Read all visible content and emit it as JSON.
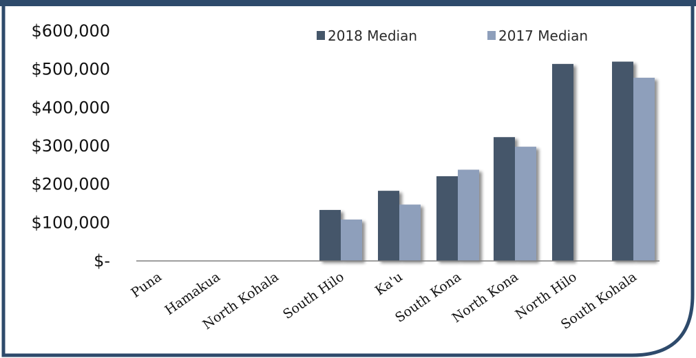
{
  "chart_data": {
    "type": "bar",
    "title": "",
    "xlabel": "",
    "ylabel": "",
    "categories": [
      "Puna",
      "Hamakua",
      "North Kohala",
      "South Hilo",
      "Ka'u",
      "South Kona",
      "North Kona",
      "North Hilo",
      "South Kohala"
    ],
    "series": [
      {
        "name": "2018 Median",
        "color": "#45576a",
        "values": [
          0,
          0,
          0,
          133000,
          183000,
          221000,
          323000,
          514000,
          520000
        ]
      },
      {
        "name": "2017 Median",
        "color": "#8e9fbb",
        "values": [
          0,
          0,
          0,
          108000,
          147000,
          238000,
          298000,
          0,
          478000
        ]
      }
    ],
    "ylim": [
      0,
      600000
    ],
    "yticks": [
      0,
      100000,
      200000,
      300000,
      400000,
      500000,
      600000
    ],
    "ytick_labels": [
      "$-",
      "$100,000",
      "$200,000",
      "$300,000",
      "$400,000",
      "$500,000",
      "$600,000"
    ],
    "grid": false,
    "legend_position": "top-right",
    "colors": {
      "frame_border": "#2e4a6b",
      "axis_line": "#7f7f7f"
    }
  }
}
